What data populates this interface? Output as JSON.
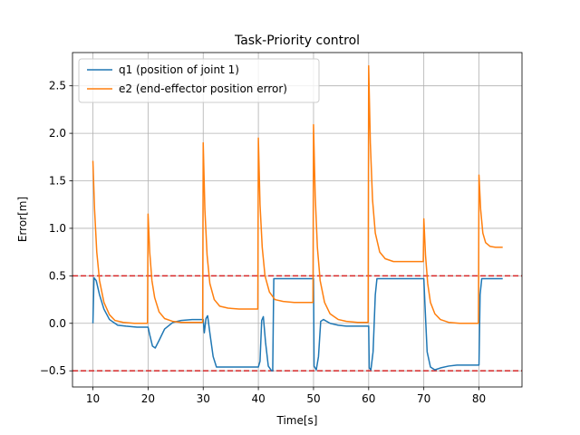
{
  "chart_data": {
    "type": "line",
    "title": "Task-Priority control",
    "xlabel": "Time[s]",
    "ylabel": "Error[m]",
    "xlim": [
      6.3,
      87.8
    ],
    "ylim": [
      -0.67,
      2.85
    ],
    "xticks": [
      10,
      20,
      30,
      40,
      50,
      60,
      70,
      80
    ],
    "yticks": [
      -0.5,
      0.0,
      0.5,
      1.0,
      1.5,
      2.0,
      2.5
    ],
    "ytick_labels": [
      "−0.5",
      "0.0",
      "0.5",
      "1.0",
      "1.5",
      "2.0",
      "2.5"
    ],
    "grid": true,
    "legend": "top-left",
    "reference_lines": [
      {
        "y": 0.5,
        "color": "#d62728",
        "style": "dashed"
      },
      {
        "y": -0.5,
        "color": "#d62728",
        "style": "dashed"
      }
    ],
    "series": [
      {
        "name": "q1 (position of joint 1)",
        "color": "#1f77b4",
        "points": [
          [
            10.0,
            0.0
          ],
          [
            10.2,
            0.48
          ],
          [
            10.6,
            0.45
          ],
          [
            11.2,
            0.3
          ],
          [
            12.0,
            0.15
          ],
          [
            13.0,
            0.04
          ],
          [
            14.5,
            -0.02
          ],
          [
            16.0,
            -0.03
          ],
          [
            18.0,
            -0.04
          ],
          [
            19.9,
            -0.04
          ],
          [
            20.0,
            -0.04
          ],
          [
            20.3,
            -0.12
          ],
          [
            20.8,
            -0.24
          ],
          [
            21.3,
            -0.26
          ],
          [
            22.0,
            -0.18
          ],
          [
            23.0,
            -0.06
          ],
          [
            24.5,
            0.01
          ],
          [
            26.0,
            0.03
          ],
          [
            28.0,
            0.04
          ],
          [
            29.9,
            0.04
          ],
          [
            30.0,
            0.04
          ],
          [
            30.2,
            -0.1
          ],
          [
            30.5,
            0.05
          ],
          [
            30.8,
            0.08
          ],
          [
            31.2,
            -0.1
          ],
          [
            31.8,
            -0.35
          ],
          [
            32.4,
            -0.46
          ],
          [
            33.0,
            -0.46
          ],
          [
            35.0,
            -0.46
          ],
          [
            37.5,
            -0.46
          ],
          [
            39.9,
            -0.46
          ],
          [
            40.0,
            -0.46
          ],
          [
            40.3,
            -0.4
          ],
          [
            40.6,
            0.03
          ],
          [
            40.9,
            0.07
          ],
          [
            41.3,
            -0.2
          ],
          [
            41.8,
            -0.45
          ],
          [
            42.4,
            -0.5
          ],
          [
            42.6,
            -0.5
          ],
          [
            42.8,
            0.47
          ],
          [
            45.0,
            0.47
          ],
          [
            47.5,
            0.47
          ],
          [
            49.9,
            0.47
          ],
          [
            50.0,
            0.47
          ],
          [
            50.1,
            -0.45
          ],
          [
            50.5,
            -0.49
          ],
          [
            50.9,
            -0.35
          ],
          [
            51.3,
            0.02
          ],
          [
            51.8,
            0.04
          ],
          [
            53.0,
            0.0
          ],
          [
            54.5,
            -0.02
          ],
          [
            56.0,
            -0.03
          ],
          [
            58.0,
            -0.03
          ],
          [
            59.9,
            -0.03
          ],
          [
            60.0,
            -0.03
          ],
          [
            60.1,
            -0.47
          ],
          [
            60.4,
            -0.49
          ],
          [
            60.8,
            -0.3
          ],
          [
            61.2,
            0.3
          ],
          [
            61.5,
            0.47
          ],
          [
            63.0,
            0.47
          ],
          [
            65.0,
            0.47
          ],
          [
            67.5,
            0.47
          ],
          [
            69.9,
            0.47
          ],
          [
            70.0,
            0.47
          ],
          [
            70.2,
            0.2
          ],
          [
            70.6,
            -0.3
          ],
          [
            71.2,
            -0.46
          ],
          [
            72.0,
            -0.49
          ],
          [
            73.0,
            -0.47
          ],
          [
            74.5,
            -0.45
          ],
          [
            76.0,
            -0.44
          ],
          [
            78.0,
            -0.44
          ],
          [
            79.9,
            -0.44
          ],
          [
            80.0,
            -0.44
          ],
          [
            80.2,
            0.3
          ],
          [
            80.5,
            0.47
          ],
          [
            82.0,
            0.47
          ],
          [
            84.3,
            0.47
          ]
        ]
      },
      {
        "name": "e2 (end-effector position error)",
        "color": "#ff7f0e",
        "points": [
          [
            10.0,
            1.71
          ],
          [
            10.3,
            1.2
          ],
          [
            10.7,
            0.75
          ],
          [
            11.2,
            0.45
          ],
          [
            12.0,
            0.22
          ],
          [
            13.0,
            0.09
          ],
          [
            14.0,
            0.03
          ],
          [
            15.5,
            0.01
          ],
          [
            17.5,
            0.0
          ],
          [
            19.9,
            0.0
          ],
          [
            20.0,
            1.15
          ],
          [
            20.3,
            0.75
          ],
          [
            20.7,
            0.45
          ],
          [
            21.2,
            0.27
          ],
          [
            22.0,
            0.12
          ],
          [
            23.0,
            0.05
          ],
          [
            24.5,
            0.02
          ],
          [
            26.0,
            0.01
          ],
          [
            28.0,
            0.01
          ],
          [
            29.9,
            0.01
          ],
          [
            30.0,
            1.9
          ],
          [
            30.3,
            1.2
          ],
          [
            30.7,
            0.72
          ],
          [
            31.2,
            0.42
          ],
          [
            32.0,
            0.25
          ],
          [
            33.0,
            0.18
          ],
          [
            34.5,
            0.16
          ],
          [
            36.5,
            0.15
          ],
          [
            38.5,
            0.15
          ],
          [
            39.9,
            0.15
          ],
          [
            40.0,
            1.95
          ],
          [
            40.3,
            1.25
          ],
          [
            40.7,
            0.8
          ],
          [
            41.2,
            0.5
          ],
          [
            42.0,
            0.33
          ],
          [
            43.0,
            0.25
          ],
          [
            44.5,
            0.23
          ],
          [
            46.5,
            0.22
          ],
          [
            48.5,
            0.22
          ],
          [
            49.9,
            0.22
          ],
          [
            50.0,
            2.09
          ],
          [
            50.3,
            1.35
          ],
          [
            50.7,
            0.8
          ],
          [
            51.2,
            0.45
          ],
          [
            52.0,
            0.22
          ],
          [
            53.0,
            0.1
          ],
          [
            54.5,
            0.04
          ],
          [
            56.0,
            0.02
          ],
          [
            58.0,
            0.01
          ],
          [
            59.9,
            0.01
          ],
          [
            60.0,
            2.71
          ],
          [
            60.3,
            1.9
          ],
          [
            60.7,
            1.3
          ],
          [
            61.2,
            0.95
          ],
          [
            62.0,
            0.75
          ],
          [
            63.0,
            0.68
          ],
          [
            64.5,
            0.65
          ],
          [
            66.5,
            0.65
          ],
          [
            68.5,
            0.65
          ],
          [
            69.9,
            0.65
          ],
          [
            70.0,
            1.1
          ],
          [
            70.3,
            0.72
          ],
          [
            70.7,
            0.42
          ],
          [
            71.2,
            0.22
          ],
          [
            72.0,
            0.1
          ],
          [
            73.0,
            0.04
          ],
          [
            74.5,
            0.01
          ],
          [
            76.5,
            0.0
          ],
          [
            78.5,
            0.0
          ],
          [
            79.9,
            0.0
          ],
          [
            80.0,
            1.56
          ],
          [
            80.3,
            1.2
          ],
          [
            80.7,
            0.95
          ],
          [
            81.2,
            0.85
          ],
          [
            82.0,
            0.81
          ],
          [
            83.0,
            0.8
          ],
          [
            84.3,
            0.8
          ]
        ]
      }
    ]
  }
}
